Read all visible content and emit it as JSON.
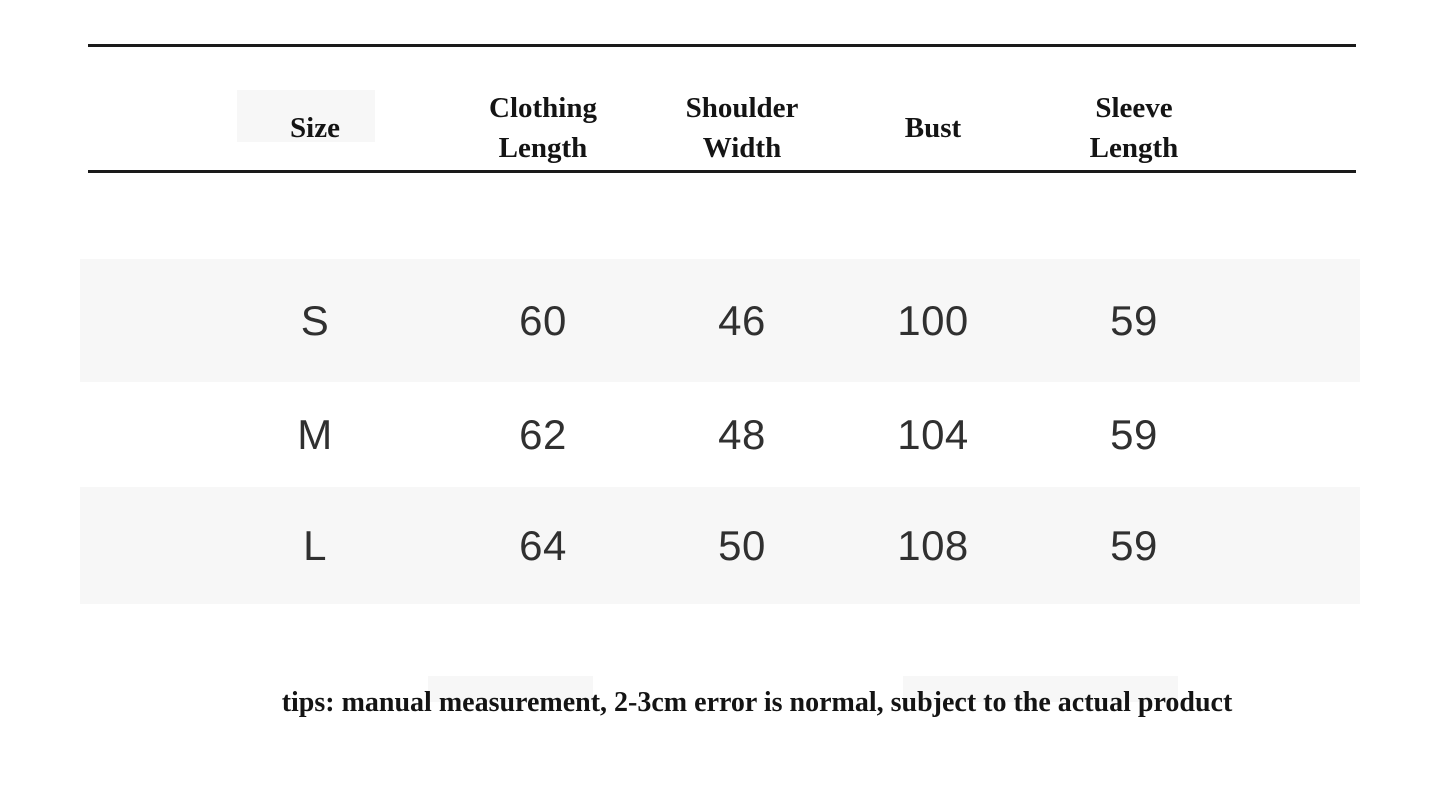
{
  "chart_data": {
    "type": "table",
    "columns": [
      "Size",
      "Clothing Length",
      "Shoulder Width",
      "Bust",
      "Sleeve Length"
    ],
    "rows": [
      [
        "S",
        "60",
        "46",
        "100",
        "59"
      ],
      [
        "M",
        "62",
        "48",
        "104",
        "59"
      ],
      [
        "L",
        "64",
        "50",
        "108",
        "59"
      ]
    ],
    "layout_hints": {
      "striped_rows": [
        "S",
        "L"
      ],
      "grid": "horizontal rules above and below header only"
    }
  },
  "tips": "tips: manual measurement, 2-3cm error is normal, subject to the actual product",
  "colors": {
    "background": "#ffffff",
    "rule": "#1a1a1a",
    "header_text": "#141414",
    "data_text": "#303030",
    "stripe": "#f7f7f7",
    "tips_text": "#141414"
  }
}
